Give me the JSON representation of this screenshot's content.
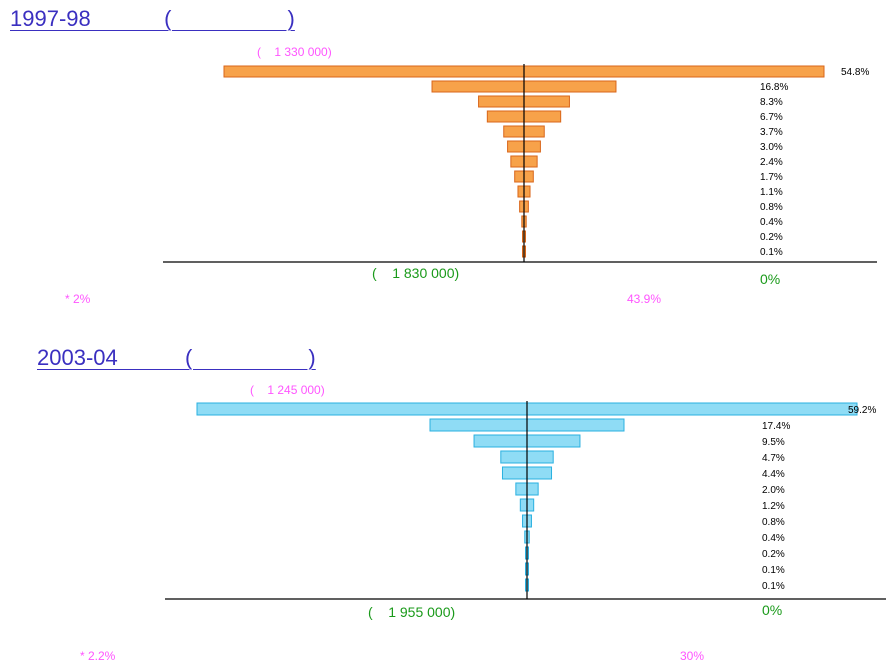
{
  "chart_data": [
    {
      "type": "bar",
      "title": "1997-98            (                   )",
      "annotation_top": "(    1 330 000)",
      "annotation_bottom_left": "(    1 830 000)",
      "annotation_bottom_right": "0%",
      "note_left": "* 2%",
      "note_right": "43.9%",
      "series": [
        {
          "values": [
            54.8,
            16.8,
            8.3,
            6.7,
            3.7,
            3.0,
            2.4,
            1.7,
            1.1,
            0.8,
            0.4,
            0.2,
            0.1
          ]
        }
      ],
      "labels": [
        "54.8%",
        "16.8%",
        "8.3%",
        "6.7%",
        "3.7%",
        "3.0%",
        "2.4%",
        "1.7%",
        "1.1%",
        "0.8%",
        "0.4%",
        "0.2%",
        "0.1%"
      ],
      "colors": {
        "fill": "#f7a24a",
        "stroke": "#d9661a"
      }
    },
    {
      "type": "bar",
      "title": "2003-04           (                   )",
      "annotation_top": "(    1 245 000)",
      "annotation_bottom_left": "(    1 955 000)",
      "annotation_bottom_right": "0%",
      "note_left": "* 2.2%",
      "note_right": "30%",
      "series": [
        {
          "values": [
            59.2,
            17.4,
            9.5,
            4.7,
            4.4,
            2.0,
            1.2,
            0.8,
            0.4,
            0.2,
            0.1,
            0.1
          ]
        }
      ],
      "labels": [
        "59.2%",
        "17.4%",
        "9.5%",
        "4.7%",
        "4.4%",
        "2.0%",
        "1.2%",
        "0.8%",
        "0.4%",
        "0.2%",
        "0.1%",
        "0.1%"
      ],
      "colors": {
        "fill": "#8fdcf5",
        "stroke": "#2ab0e0"
      }
    }
  ]
}
